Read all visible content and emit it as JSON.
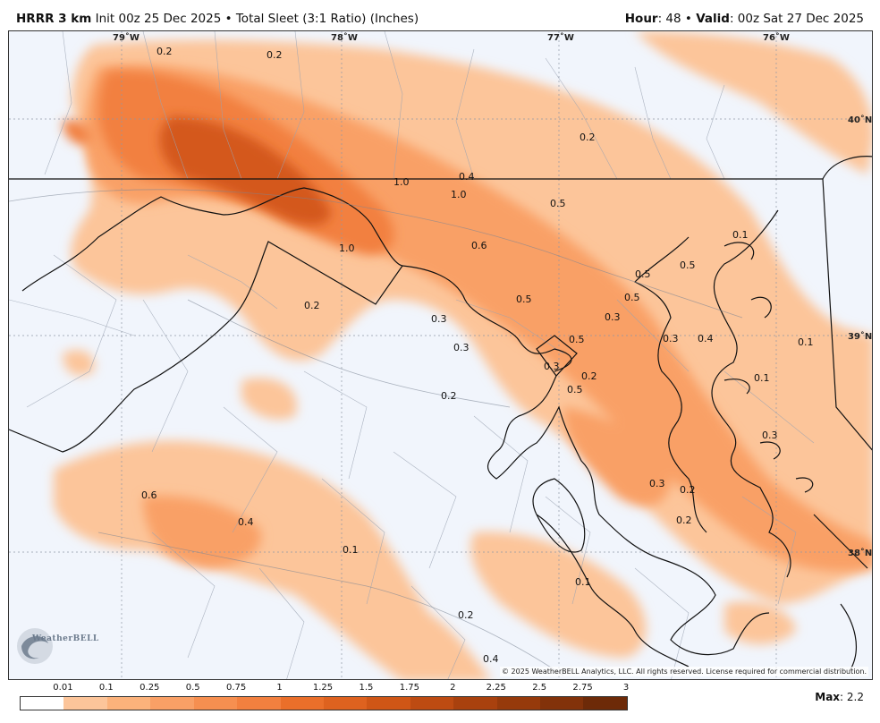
{
  "header": {
    "model": "HRRR 3 km",
    "init": "Init 00z 25 Dec 2025",
    "separator": "•",
    "product": "Total Sleet (3:1 Ratio) (Inches)",
    "hour_label": "Hour",
    "hour_value": ": 48",
    "valid_label": "Valid",
    "valid_value": ": 00z Sat 27 Dec 2025"
  },
  "map": {
    "longitude_labels": [
      "79˚W",
      "78˚W",
      "77˚W",
      "76˚W"
    ],
    "latitude_labels": [
      "40˚N",
      "39˚N",
      "38˚N"
    ],
    "contour_labels": [
      "0.2",
      "0.2",
      "0.2",
      "1.0",
      "0.4",
      "1.0",
      "0.5",
      "0.6",
      "1.0",
      "0.2",
      "0.5",
      "0.1",
      "0.5",
      "0.5",
      "0.3",
      "0.5",
      "0.3",
      "0.3",
      "0.4",
      "0.1",
      "0.3",
      "0.5",
      "0.2",
      "0.1",
      "0.5",
      "0.2",
      "0.3",
      "0.3",
      "0.2",
      "0.6",
      "0.4",
      "0.2",
      "0.1",
      "0.1",
      "0.2",
      "0.4",
      "0.3"
    ],
    "copyright": "© 2025 WeatherBELL Analytics, LLC. All rights reserved. License required for commercial distribution.",
    "logo": "WeatherBELL"
  },
  "legend": {
    "ticks": [
      "0.01",
      "0.1",
      "0.25",
      "0.5",
      "0.75",
      "1",
      "1.25",
      "1.5",
      "1.75",
      "2",
      "2.25",
      "2.5",
      "2.75",
      "3"
    ],
    "colors": [
      "#ffffff",
      "#fcc59a",
      "#fbb27b",
      "#f9a066",
      "#f68f50",
      "#f2803f",
      "#ea6f2a",
      "#de621f",
      "#cf5616",
      "#bd4b12",
      "#a9410e",
      "#963a0b",
      "#82320a",
      "#6d2a08"
    ],
    "max_label": "Max",
    "max_value": ": 2.2"
  },
  "colors": {
    "fill_light": "#fcc59a",
    "fill_mid": "#f9a066",
    "fill_strong": "#f2803f",
    "fill_heavy": "#d4581a",
    "background": "#f1f5fc"
  }
}
